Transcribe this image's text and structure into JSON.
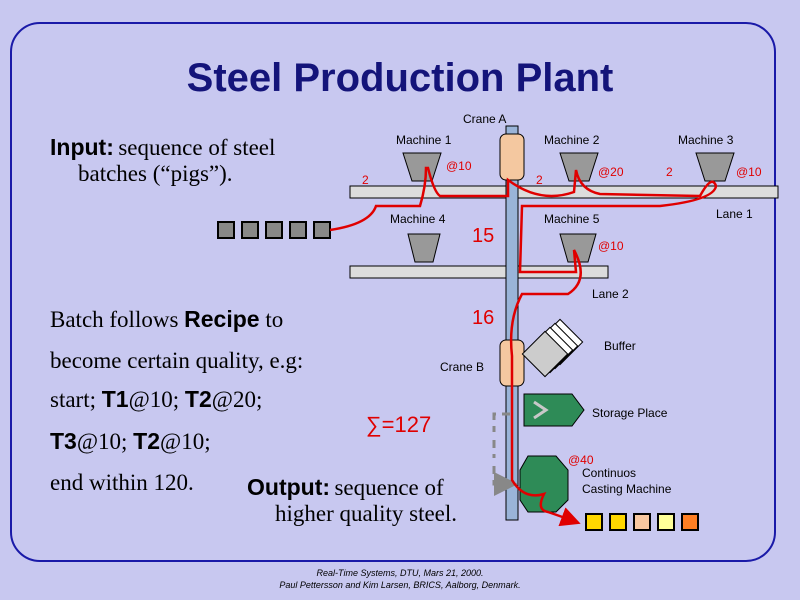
{
  "title": "Steel Production Plant",
  "input": {
    "label": "Input:",
    "text1": "sequence of steel",
    "text2": "batches (“pigs”)."
  },
  "recipe": {
    "line1_pre": "Batch follows ",
    "line1_bold": "Recipe",
    "line1_post": " to",
    "line2": "become certain quality, e.g:",
    "line3_a": "start; ",
    "line3_b": "T1",
    "line3_c": "@10; ",
    "line3_d": "T2",
    "line3_e": "@20;",
    "line4_a": "T3",
    "line4_b": "@10; ",
    "line4_c": "T2",
    "line4_d": "@10;",
    "line5": "end within 120."
  },
  "output": {
    "label": "Output:",
    "text1": "sequence of",
    "text2": "higher quality steel."
  },
  "sum": "∑=127",
  "crane_a": "Crane A",
  "crane_b": "Crane B",
  "machines": {
    "m1": "Machine 1",
    "m2": "Machine 2",
    "m3": "Machine 3",
    "m4": "Machine 4",
    "m5": "Machine 5"
  },
  "lanes": {
    "lane1": "Lane 1",
    "lane2": "Lane 2"
  },
  "times": {
    "m1": "@10",
    "m2": "@20",
    "m3": "@10",
    "m5": "@10",
    "casting": "@40"
  },
  "moves": {
    "in": "2",
    "m1_m2": "2",
    "m2_m3": "2",
    "lane1_lane2": "15",
    "lane2_buffer": "16"
  },
  "buffer": "Buffer",
  "storage": "Storage Place",
  "casting1": "Continuos",
  "casting2": "Casting Machine",
  "footer1": "Real-Time Systems, DTU, Mars 21, 2000.",
  "footer2": "Paul Pettersson and Kim Larsen, BRICS, Aalborg, Denmark.",
  "colors": {
    "accent": "#14147a",
    "path": "#e00000",
    "crane": "#f4c8a0",
    "machine": "#999999",
    "casting": "#2e8b57"
  }
}
